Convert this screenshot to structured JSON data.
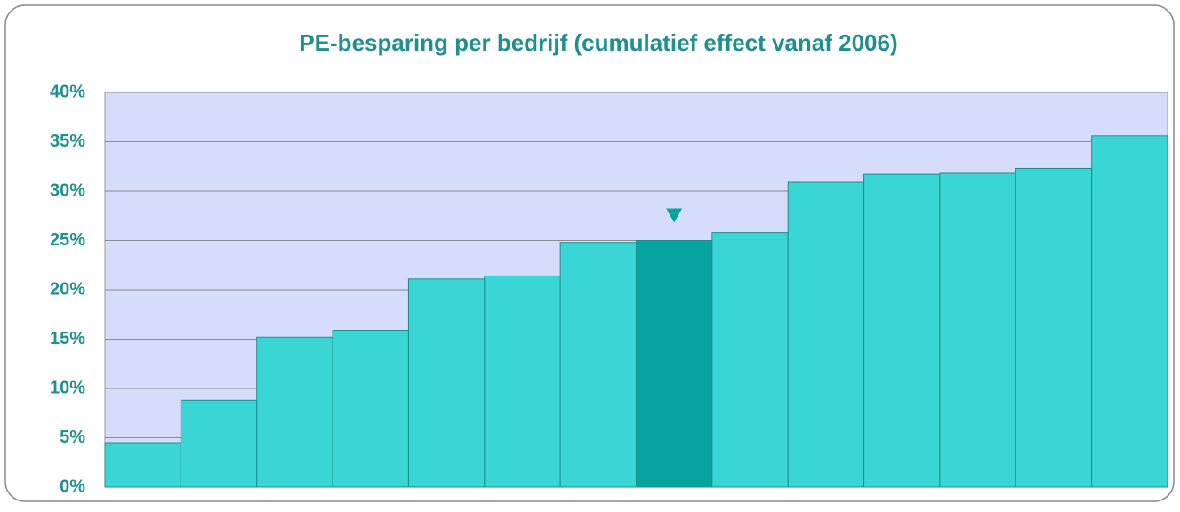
{
  "chart_data": {
    "type": "bar",
    "title": "PE-besparing per bedrijf (cumulatief effect vanaf 2006)",
    "categories": [
      null,
      null,
      null,
      null,
      null,
      null,
      null,
      null,
      null,
      null,
      null,
      null,
      null,
      null
    ],
    "values": [
      4.5,
      8.8,
      15.2,
      15.9,
      21.1,
      21.4,
      24.8,
      25.0,
      25.8,
      30.9,
      31.7,
      31.8,
      32.3,
      35.6
    ],
    "colors": [
      "#3ad6d6",
      "#3ad6d6",
      "#3ad6d6",
      "#3ad6d6",
      "#3ad6d6",
      "#3ad6d6",
      "#3ad6d6",
      "#07a3a0",
      "#3ad6d6",
      "#3ad6d6",
      "#3ad6d6",
      "#3ad6d6",
      "#3ad6d6",
      "#3ad6d6"
    ],
    "ylim": [
      0,
      40
    ],
    "yticks": [
      {
        "value": 0,
        "label": "0%"
      },
      {
        "value": 5,
        "label": "5%"
      },
      {
        "value": 10,
        "label": "10%"
      },
      {
        "value": 15,
        "label": "15%"
      },
      {
        "value": 20,
        "label": "20%"
      },
      {
        "value": 25,
        "label": "25%"
      },
      {
        "value": 30,
        "label": "30%"
      },
      {
        "value": 35,
        "label": "35%"
      },
      {
        "value": 40,
        "label": "40%"
      }
    ],
    "grid": true
  }
}
